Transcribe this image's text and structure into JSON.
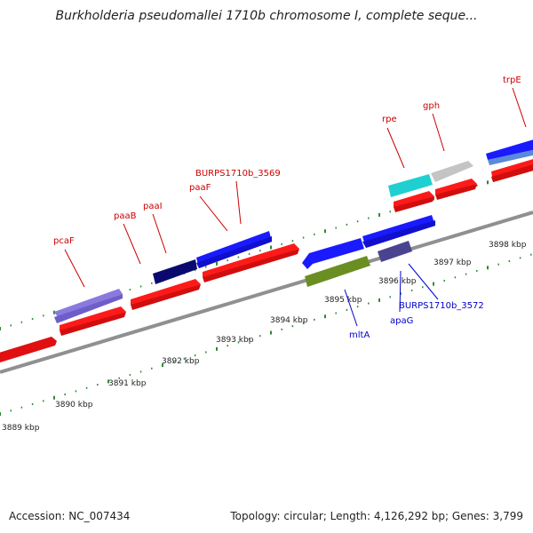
{
  "title": "Burkholderia pseudomallei 1710b chromosome I, complete seque...",
  "footer": {
    "accession": "Accession: NC_007434",
    "summary": "Topology: circular; Length: 4,126,292 bp; Genes: 3,799"
  },
  "scale_labels": [
    "3889 kbp",
    "3890 kbp",
    "3891 kbp",
    "3892 kbp",
    "3893 kbp",
    "3894 kbp",
    "3895 kbp",
    "3896 kbp",
    "3897 kbp",
    "3898 kbp"
  ],
  "gene_labels_forward": [
    "pcaF",
    "paaB",
    "paaI",
    "paaF",
    "BURPS1710b_3569",
    "rpe",
    "gph",
    "trpE"
  ],
  "gene_labels_reverse": [
    "mltA",
    "apaG",
    "BURPS1710b_3572"
  ],
  "colors": {
    "forward_label": "#cc0000",
    "reverse_label": "#0000cc",
    "tick": "#2e8b2e",
    "backbone": "#8c8c8c",
    "cds": "#ff1a1a",
    "gene_forward": "#1a1aff",
    "gene_reverse": "#1a1aff",
    "gene_dark": "#0a0a6e",
    "gene_lavender": "#8a7ae0",
    "gene_cyan": "#20d0d0",
    "gene_gray": "#c4c4c4",
    "gene_olive": "#6b8e23",
    "gene_slate": "#4a4490"
  }
}
